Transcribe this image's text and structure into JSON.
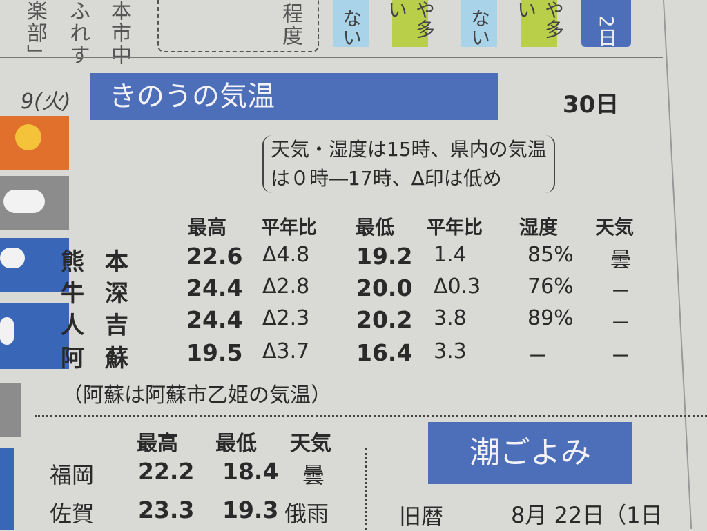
{
  "top_strip": {
    "vertical_texts": [
      "楽部」",
      "ふれす",
      "本市中"
    ],
    "box_text": "程度",
    "pills": [
      {
        "text": "ない",
        "color": "#a9d3e8"
      },
      {
        "text": "や多い",
        "color": "#b9cf4a"
      },
      {
        "text": "ない",
        "color": "#a9d3e8"
      },
      {
        "text": "や多い",
        "color": "#b9cf4a"
      },
      {
        "text": "2日",
        "color": "#4d6eb8"
      }
    ]
  },
  "forecast_column": {
    "date_label": "9(火)",
    "icons": [
      "sun-rain-icon",
      "cloud-rain-icon",
      "cloud-rain-icon",
      "cloud-rain-icon",
      "cloud-icon",
      "rain-icon"
    ]
  },
  "yesterday_temp": {
    "title": "きのうの気温",
    "date": "30日",
    "note_line1": "天気・湿度は15時、県内の気温",
    "note_line2": "は０時―17時、Δ印は低め",
    "headers": [
      "最高",
      "平年比",
      "最低",
      "平年比",
      "湿度",
      "天気"
    ],
    "rows": [
      {
        "name": "熊　本",
        "high": "22.6",
        "high_diff": "Δ4.8",
        "low": "19.2",
        "low_diff": "1.4",
        "humidity": "85%",
        "weather": "曇"
      },
      {
        "name": "牛　深",
        "high": "24.4",
        "high_diff": "Δ2.8",
        "low": "20.0",
        "low_diff": "Δ0.3",
        "humidity": "76%",
        "weather": "－"
      },
      {
        "name": "人　吉",
        "high": "24.4",
        "high_diff": "Δ2.3",
        "low": "20.2",
        "low_diff": "3.8",
        "humidity": "89%",
        "weather": "－"
      },
      {
        "name": "阿　蘇",
        "high": "19.5",
        "high_diff": "Δ3.7",
        "low": "16.4",
        "low_diff": "3.3",
        "humidity": "－",
        "weather": "－"
      }
    ],
    "footnote": "（阿蘇は阿蘇市乙姫の気温）"
  },
  "other_cities": {
    "headers": [
      "最高",
      "最低",
      "天気"
    ],
    "rows": [
      {
        "name": "福岡",
        "high": "22.2",
        "low": "18.4",
        "weather": "曇"
      },
      {
        "name": "佐賀",
        "high": "23.3",
        "low": "19.3",
        "weather": "俄雨"
      }
    ]
  },
  "tide": {
    "title": "潮ごよみ",
    "label": "旧暦",
    "value": "8月 22日（1日"
  },
  "colors": {
    "accent_blue": "#4d6eb8",
    "paper": "#d9d9d5"
  }
}
